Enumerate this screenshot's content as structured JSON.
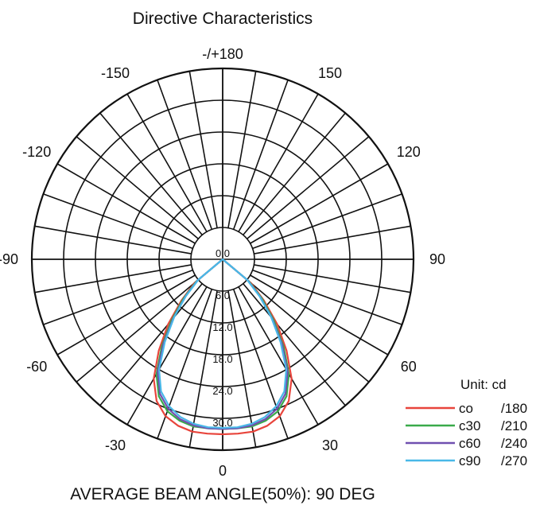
{
  "chart_data": {
    "type": "polar",
    "title": "Directive Characteristics",
    "unit_label": "Unit: cd",
    "footer": "AVERAGE BEAM ANGLE(50%): 90 DEG",
    "angle_labels": [
      {
        "angle": 0,
        "text": "0"
      },
      {
        "angle": 30,
        "text": "30"
      },
      {
        "angle": -30,
        "text": "-30"
      },
      {
        "angle": 60,
        "text": "60"
      },
      {
        "angle": -60,
        "text": "-60"
      },
      {
        "angle": 90,
        "text": "90"
      },
      {
        "angle": -90,
        "text": "-90"
      },
      {
        "angle": 120,
        "text": "120"
      },
      {
        "angle": -120,
        "text": "-120"
      },
      {
        "angle": 150,
        "text": "150"
      },
      {
        "angle": -150,
        "text": "-150"
      },
      {
        "angle": 180,
        "text": "-/+180"
      }
    ],
    "radial_ticks": [
      "0.0",
      "6.0",
      "12.0",
      "18.0",
      "24.0",
      "30.0"
    ],
    "r_max": 36,
    "grid_ring_values": [
      6,
      12,
      18,
      24,
      30,
      36
    ],
    "series": [
      {
        "name": "co",
        "pair": "/180",
        "color": "#e8453c",
        "angles": [
          -50,
          -45,
          -40,
          -35,
          -30,
          -25,
          -20,
          -15,
          -10,
          -5,
          0,
          5,
          10,
          15,
          20,
          25,
          30,
          35,
          40,
          45,
          50
        ],
        "values": [
          7,
          11,
          16,
          21,
          26,
          29.5,
          31.5,
          32.5,
          33,
          33,
          33,
          33,
          33,
          32.5,
          31.5,
          29.5,
          26,
          21,
          16,
          11,
          7
        ]
      },
      {
        "name": "c30",
        "pair": "/210",
        "color": "#3aaa4a",
        "angles": [
          -50,
          -45,
          -40,
          -35,
          -30,
          -25,
          -20,
          -15,
          -10,
          -5,
          0,
          5,
          10,
          15,
          20,
          25,
          30,
          35,
          40,
          45,
          50
        ],
        "values": [
          6.5,
          10.5,
          15,
          20,
          25,
          28.5,
          30.5,
          31.5,
          32,
          32,
          32,
          32,
          32,
          31.5,
          30.5,
          28.5,
          25,
          20,
          15,
          10.5,
          6.5
        ]
      },
      {
        "name": "c60",
        "pair": "/240",
        "color": "#7050b0",
        "angles": [
          -50,
          -45,
          -40,
          -35,
          -30,
          -25,
          -20,
          -15,
          -10,
          -5,
          0,
          5,
          10,
          15,
          20,
          25,
          30,
          35,
          40,
          45,
          50
        ],
        "values": [
          6.2,
          10,
          14.5,
          19.5,
          24.5,
          28,
          30,
          31.2,
          31.8,
          32,
          32,
          32,
          31.8,
          31.2,
          30,
          28,
          24.5,
          19.5,
          14.5,
          10,
          6.2
        ]
      },
      {
        "name": "c90",
        "pair": "/270",
        "color": "#49b8e8",
        "angles": [
          -50,
          -45,
          -40,
          -35,
          -30,
          -25,
          -20,
          -15,
          -10,
          -5,
          0,
          5,
          10,
          15,
          20,
          25,
          30,
          35,
          40,
          45,
          50
        ],
        "values": [
          6,
          9.8,
          14.2,
          19,
          24,
          27.5,
          29.5,
          30.8,
          31.5,
          31.8,
          31.8,
          31.8,
          31.5,
          30.8,
          29.5,
          27.5,
          24,
          19,
          14.2,
          9.8,
          6
        ]
      }
    ]
  }
}
